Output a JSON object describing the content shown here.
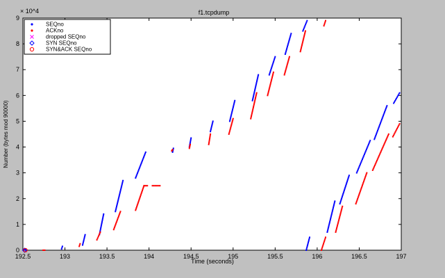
{
  "window": {
    "title": "f1.tcpdump"
  },
  "chart_data": {
    "type": "scatter",
    "title": "f1.tcpdump",
    "xlabel": "Time (seconds)",
    "ylabel": "Number (bytes mod 90000)",
    "y_scale_note": "× 10^4",
    "xlim": [
      192.5,
      197
    ],
    "ylim": [
      0,
      9
    ],
    "x_ticks": [
      192.5,
      193,
      193.5,
      194,
      194.5,
      195,
      195.5,
      196,
      196.5,
      197
    ],
    "x_tick_labels": [
      "192.5",
      "193",
      "193.5",
      "194",
      "194.5",
      "195",
      "195.5",
      "196",
      "196.5",
      "197"
    ],
    "y_ticks": [
      0,
      1,
      2,
      3,
      4,
      5,
      6,
      7,
      8,
      9
    ],
    "y_tick_labels": [
      "0",
      "1",
      "2",
      "3",
      "4",
      "5",
      "6",
      "7",
      "8",
      "9"
    ],
    "grid": false,
    "legend_position": "top-left",
    "legend": [
      {
        "label": "SEQno",
        "marker": "dot",
        "color": "#0000ff"
      },
      {
        "label": "ACKno",
        "marker": "dot",
        "color": "#ff0000"
      },
      {
        "label": "dropped SEQno",
        "marker": "x",
        "color": "#ff00ff"
      },
      {
        "label": "SYN SEQno",
        "marker": "diamond",
        "color": "#0000ff"
      },
      {
        "label": "SYN&ACK SEQno",
        "marker": "circle",
        "color": "#ff0000"
      }
    ],
    "series": [
      {
        "name": "SEQno",
        "color": "#0000ff",
        "segments": [
          {
            "x": [
              192.52,
              192.53
            ],
            "y": [
              0.02,
              0.02
            ]
          },
          {
            "x": [
              192.96,
              192.97
            ],
            "y": [
              0.05,
              0.15
            ]
          },
          {
            "x": [
              193.21,
              193.24
            ],
            "y": [
              0.2,
              0.6
            ]
          },
          {
            "x": [
              193.41,
              193.46
            ],
            "y": [
              0.6,
              1.4
            ]
          },
          {
            "x": [
              193.6,
              193.69
            ],
            "y": [
              1.5,
              2.7
            ]
          },
          {
            "x": [
              193.84,
              193.96
            ],
            "y": [
              2.8,
              3.8
            ]
          },
          {
            "x": [
              194.28,
              194.29
            ],
            "y": [
              3.8,
              3.95
            ]
          },
          {
            "x": [
              194.48,
              194.5
            ],
            "y": [
              4.0,
              4.35
            ]
          },
          {
            "x": [
              194.73,
              194.76
            ],
            "y": [
              4.6,
              5.0
            ]
          },
          {
            "x": [
              194.96,
              195.02
            ],
            "y": [
              5.0,
              5.8
            ]
          },
          {
            "x": [
              195.23,
              195.3
            ],
            "y": [
              5.8,
              6.8
            ]
          },
          {
            "x": [
              195.43,
              195.5
            ],
            "y": [
              6.8,
              7.5
            ]
          },
          {
            "x": [
              195.62,
              195.69
            ],
            "y": [
              7.6,
              8.4
            ]
          },
          {
            "x": [
              195.83,
              195.88
            ],
            "y": [
              8.5,
              8.9
            ]
          },
          {
            "x": [
              195.87,
              195.91
            ],
            "y": [
              0.0,
              0.5
            ]
          },
          {
            "x": [
              196.12,
              196.21
            ],
            "y": [
              0.7,
              1.9
            ]
          },
          {
            "x": [
              196.27,
              196.38
            ],
            "y": [
              1.8,
              2.9
            ]
          },
          {
            "x": [
              196.47,
              196.63
            ],
            "y": [
              3.0,
              4.25
            ]
          },
          {
            "x": [
              196.68,
              196.83
            ],
            "y": [
              4.3,
              5.6
            ]
          },
          {
            "x": [
              196.91,
              196.98
            ],
            "y": [
              5.7,
              6.1
            ]
          }
        ]
      },
      {
        "name": "ACKno",
        "color": "#ff0000",
        "segments": [
          {
            "x": [
              192.74,
              192.76
            ],
            "y": [
              0.0,
              0.0
            ]
          },
          {
            "x": [
              193.17,
              193.18
            ],
            "y": [
              0.15,
              0.25
            ]
          },
          {
            "x": [
              193.38,
              193.42
            ],
            "y": [
              0.4,
              0.7
            ]
          },
          {
            "x": [
              193.58,
              193.66
            ],
            "y": [
              0.8,
              1.5
            ]
          },
          {
            "x": [
              193.84,
              193.94
            ],
            "y": [
              1.55,
              2.5
            ]
          },
          {
            "x": [
              193.94,
              193.98
            ],
            "y": [
              2.5,
              2.5
            ]
          },
          {
            "x": [
              194.04,
              194.13
            ],
            "y": [
              2.5,
              2.5
            ]
          },
          {
            "x": [
              194.27,
              194.28
            ],
            "y": [
              3.85,
              3.9
            ]
          },
          {
            "x": [
              194.48,
              194.49
            ],
            "y": [
              3.95,
              4.1
            ]
          },
          {
            "x": [
              194.71,
              194.73
            ],
            "y": [
              4.1,
              4.5
            ]
          },
          {
            "x": [
              194.95,
              195.0
            ],
            "y": [
              4.5,
              5.1
            ]
          },
          {
            "x": [
              195.21,
              195.28
            ],
            "y": [
              5.1,
              6.1
            ]
          },
          {
            "x": [
              195.41,
              195.48
            ],
            "y": [
              6.0,
              6.9
            ]
          },
          {
            "x": [
              195.61,
              195.67
            ],
            "y": [
              6.8,
              7.5
            ]
          },
          {
            "x": [
              195.8,
              195.86
            ],
            "y": [
              7.7,
              8.5
            ]
          },
          {
            "x": [
              196.08,
              196.1
            ],
            "y": [
              8.7,
              8.9
            ]
          },
          {
            "x": [
              196.05,
              196.1
            ],
            "y": [
              0.0,
              0.5
            ]
          },
          {
            "x": [
              196.22,
              196.3
            ],
            "y": [
              0.7,
              1.7
            ]
          },
          {
            "x": [
              196.46,
              196.59
            ],
            "y": [
              1.8,
              3.0
            ]
          },
          {
            "x": [
              196.66,
              196.85
            ],
            "y": [
              3.1,
              4.5
            ]
          },
          {
            "x": [
              196.9,
              196.98
            ],
            "y": [
              4.4,
              4.9
            ]
          }
        ]
      },
      {
        "name": "SYN SEQno",
        "color": "#0000ff",
        "points": [
          {
            "x": 192.52,
            "y": 0.0
          }
        ]
      },
      {
        "name": "SYN&ACK SEQno",
        "color": "#ff0000",
        "points": [
          {
            "x": 192.53,
            "y": 0.0
          }
        ]
      }
    ]
  }
}
